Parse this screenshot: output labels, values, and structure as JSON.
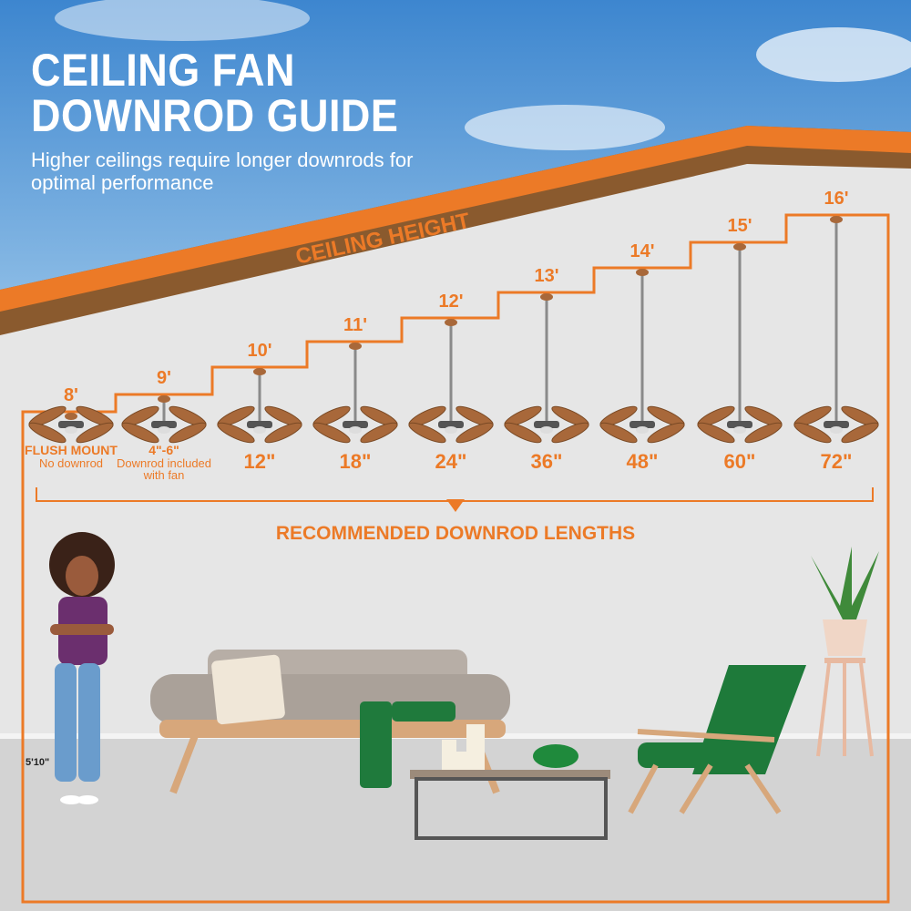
{
  "title": [
    "CEILING FAN",
    "DOWNROD GUIDE"
  ],
  "subtitle": "Higher ceilings require longer downrods for optimal performance",
  "ceiling_label": "CEILING HEIGHT",
  "recommended_label": "RECOMMENDED DOWNROD LENGTHS",
  "person_height": "5'10\"",
  "colors": {
    "accent": "#ec7a27",
    "roof_brown": "#8a5a2e",
    "wall": "#e6e6e6",
    "floor": "#d3d3d3",
    "sky": "#4a8fd0"
  },
  "fans": [
    {
      "height": "8'",
      "length": "FLUSH MOUNT",
      "note": "No downrod"
    },
    {
      "height": "9'",
      "length": "4\"-6\"",
      "note": "Downrod included with fan"
    },
    {
      "height": "10'",
      "length": "12\"",
      "note": ""
    },
    {
      "height": "11'",
      "length": "18\"",
      "note": ""
    },
    {
      "height": "12'",
      "length": "24\"",
      "note": ""
    },
    {
      "height": "13'",
      "length": "36\"",
      "note": ""
    },
    {
      "height": "14'",
      "length": "48\"",
      "note": ""
    },
    {
      "height": "15'",
      "length": "60\"",
      "note": ""
    },
    {
      "height": "16'",
      "length": "72\"",
      "note": ""
    }
  ]
}
